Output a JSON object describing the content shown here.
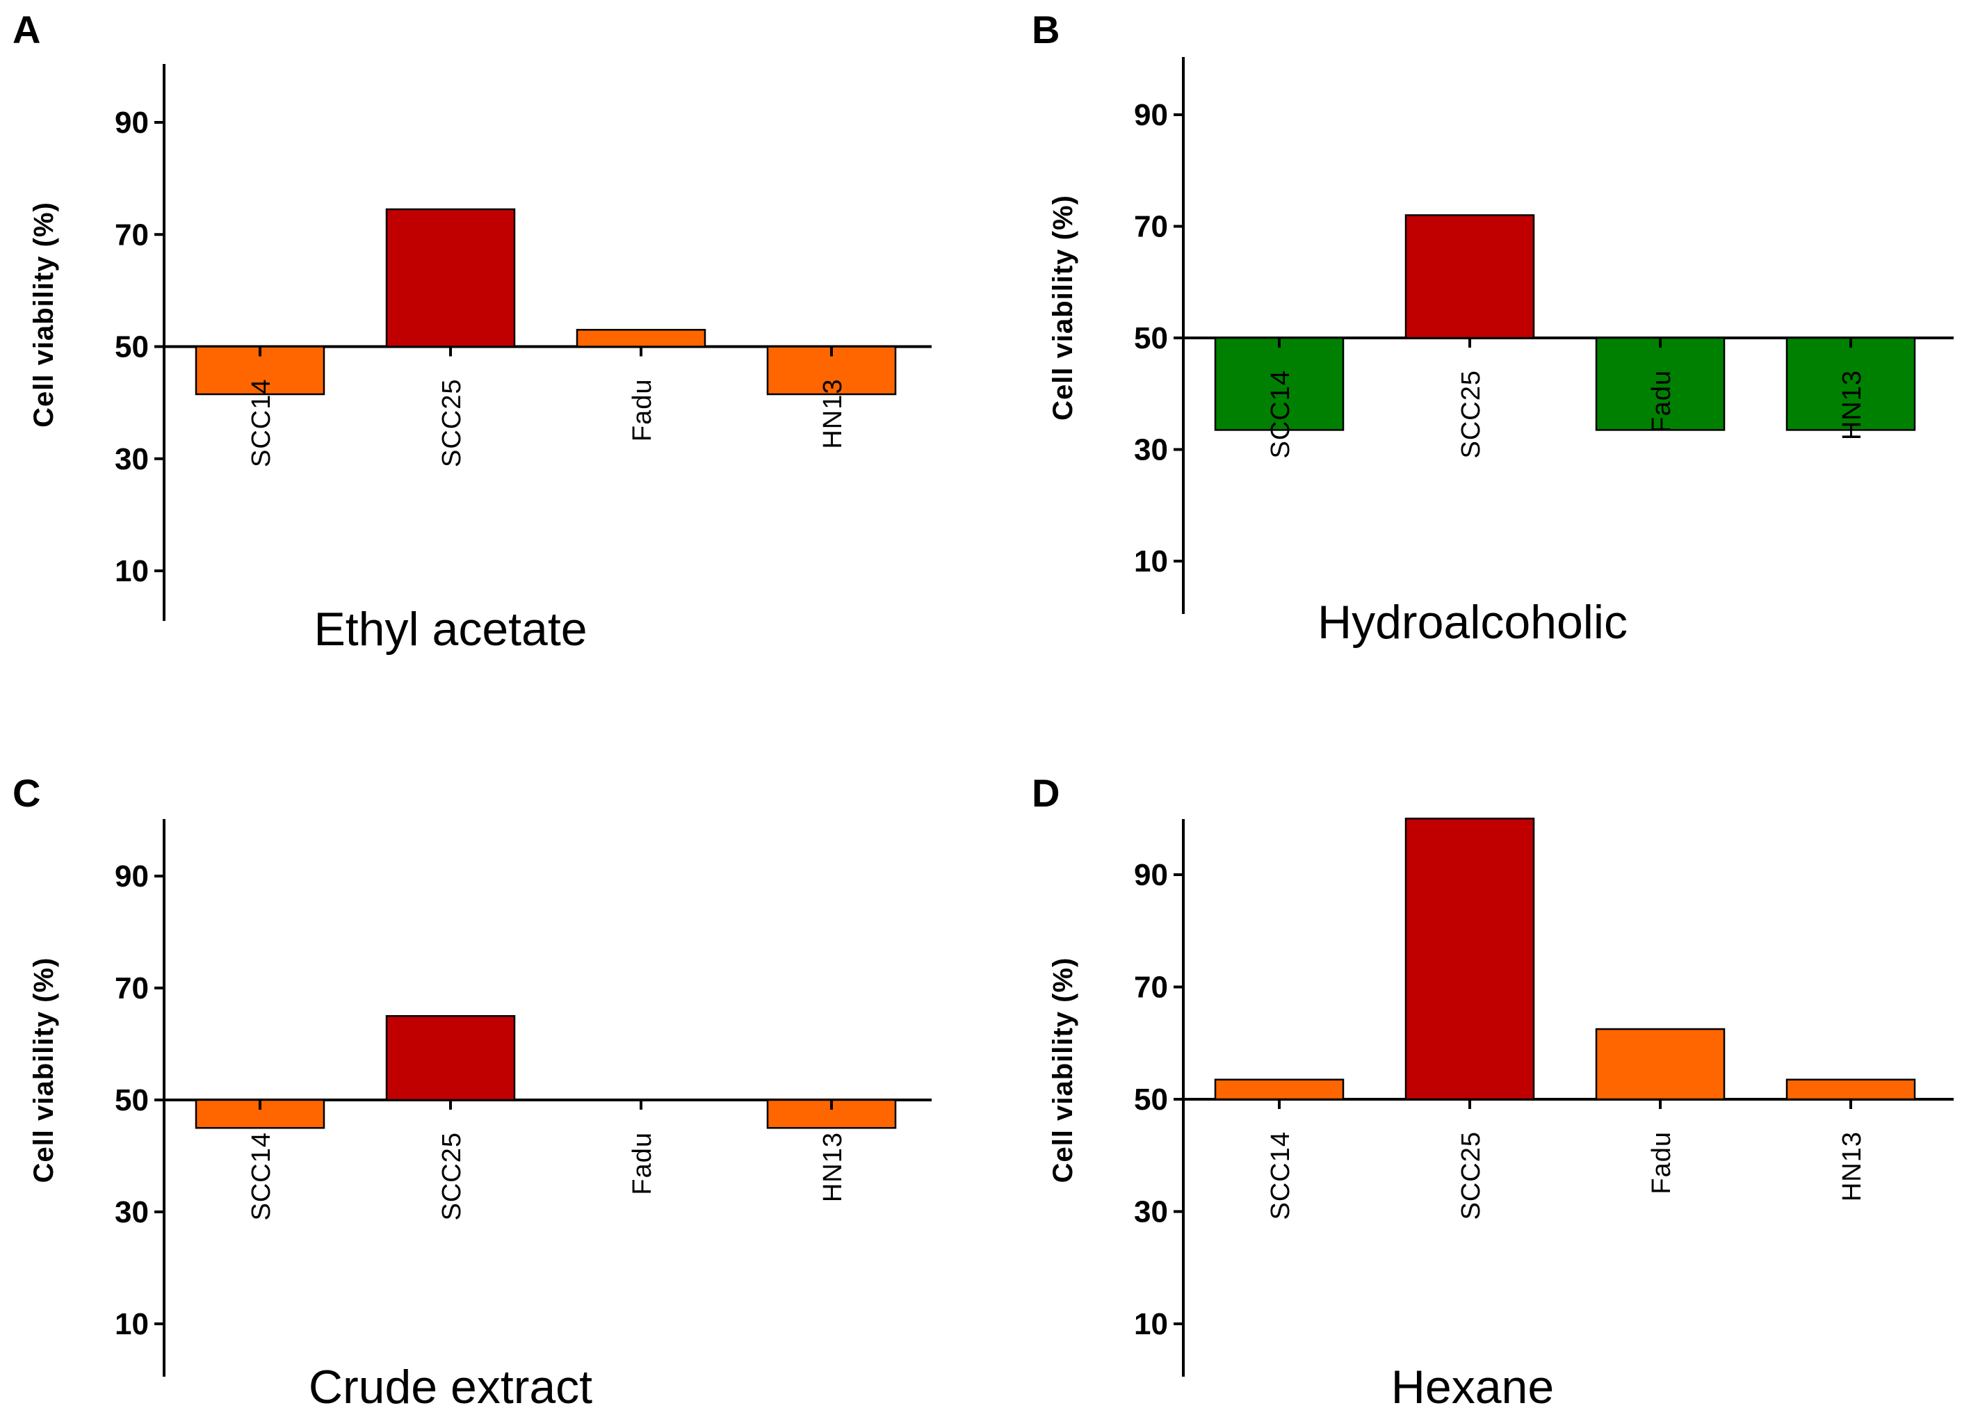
{
  "chart_data": [
    {
      "type": "bar",
      "panel": "A",
      "title": "Ethyl acetate",
      "ylabel": "Cell viability (%)",
      "xlabel": "",
      "baseline": 50,
      "ylim": [
        0,
        100
      ],
      "yticks": [
        10,
        30,
        50,
        70,
        90
      ],
      "categories": [
        "SCC14",
        "SCC25",
        "Fadu",
        "HN13"
      ],
      "values": [
        41.5,
        74.5,
        53,
        41.5
      ],
      "colors": [
        "#ff6600",
        "#c00000",
        "#ff6600",
        "#ff6600"
      ]
    },
    {
      "type": "bar",
      "panel": "B",
      "title": "Hydroalcoholic",
      "ylabel": "Cell viability (%)",
      "xlabel": "",
      "baseline": 50,
      "ylim": [
        0,
        100
      ],
      "yticks": [
        10,
        30,
        50,
        70,
        90
      ],
      "categories": [
        "SCC14",
        "SCC25",
        "Fadu",
        "HN13"
      ],
      "values": [
        33.5,
        72,
        33.5,
        33.5
      ],
      "colors": [
        "#008000",
        "#c00000",
        "#008000",
        "#008000"
      ]
    },
    {
      "type": "bar",
      "panel": "C",
      "title": "Crude extract",
      "ylabel": "Cell viability (%)",
      "xlabel": "",
      "baseline": 50,
      "ylim": [
        0,
        100
      ],
      "yticks": [
        10,
        30,
        50,
        70,
        90
      ],
      "categories": [
        "SCC14",
        "SCC25",
        "Fadu",
        "HN13"
      ],
      "values": [
        45,
        65,
        50,
        45
      ],
      "colors": [
        "#ff6600",
        "#c00000",
        "#ff6600",
        "#ff6600"
      ]
    },
    {
      "type": "bar",
      "panel": "D",
      "title": "Hexane",
      "ylabel": "Cell viability (%)",
      "xlabel": "",
      "baseline": 50,
      "ylim": [
        0,
        100
      ],
      "yticks": [
        10,
        30,
        50,
        70,
        90
      ],
      "categories": [
        "SCC14",
        "SCC25",
        "Fadu",
        "HN13"
      ],
      "values": [
        53.5,
        100,
        62.5,
        53.5
      ],
      "colors": [
        "#ff6600",
        "#c00000",
        "#ff6600",
        "#ff6600"
      ]
    }
  ]
}
